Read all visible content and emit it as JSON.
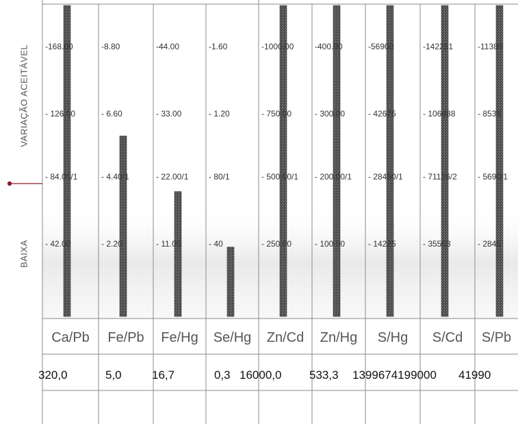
{
  "chart_data": {
    "type": "bar",
    "ylabel_top": "VARIAÇÃO ACEITÁVEL",
    "ylabel_bottom": "BAIXA",
    "categories": [
      "Ca/Pb",
      "Fe/Pb",
      "Fe/Hg",
      "Se/Hg",
      "Zn/Cd",
      "Zn/Hg",
      "S/Hg",
      "S/Cd",
      "S/Pb"
    ],
    "scale_labels": [
      [
        "-168.00",
        "-8.80",
        "-44.00",
        "-1.60",
        "-1000.00",
        "-400.00",
        "-56900",
        "-142251",
        "-11380"
      ],
      [
        "- 126.00",
        "- 6.60",
        "- 33.00",
        "- 1.20",
        "- 750.00",
        "- 300.00",
        "- 42675",
        "- 106688",
        "- 8535"
      ],
      [
        "- 84.00/1",
        "- 4.40/1",
        "- 22.00/1",
        "- 80/1",
        "- 500.00/1",
        "- 200.00/1",
        "- 28450/1",
        "- 71126/2",
        "- 5690/1"
      ],
      [
        "- 42.00",
        "- 2.20",
        "- 11.00",
        "- 40",
        "- 250.00",
        "- 100.00",
        "- 14225",
        "- 35563",
        "- 2845"
      ]
    ],
    "scale_levels": [
      4,
      3,
      2,
      1
    ],
    "values_printed": [
      "320,0",
      "5,0",
      "16,7",
      "0,3",
      "16000,0",
      "533,3",
      "1399674199000",
      "",
      "41990"
    ],
    "levels": [
      4.5,
      2.6,
      1.8,
      1.0,
      4.5,
      4.5,
      4.5,
      4.5,
      4.5
    ],
    "ylim": [
      0,
      4.5
    ],
    "colors": {
      "bar": "#555555",
      "grid": "#8a8a8a",
      "text": "#333333",
      "category": "#555555"
    }
  }
}
